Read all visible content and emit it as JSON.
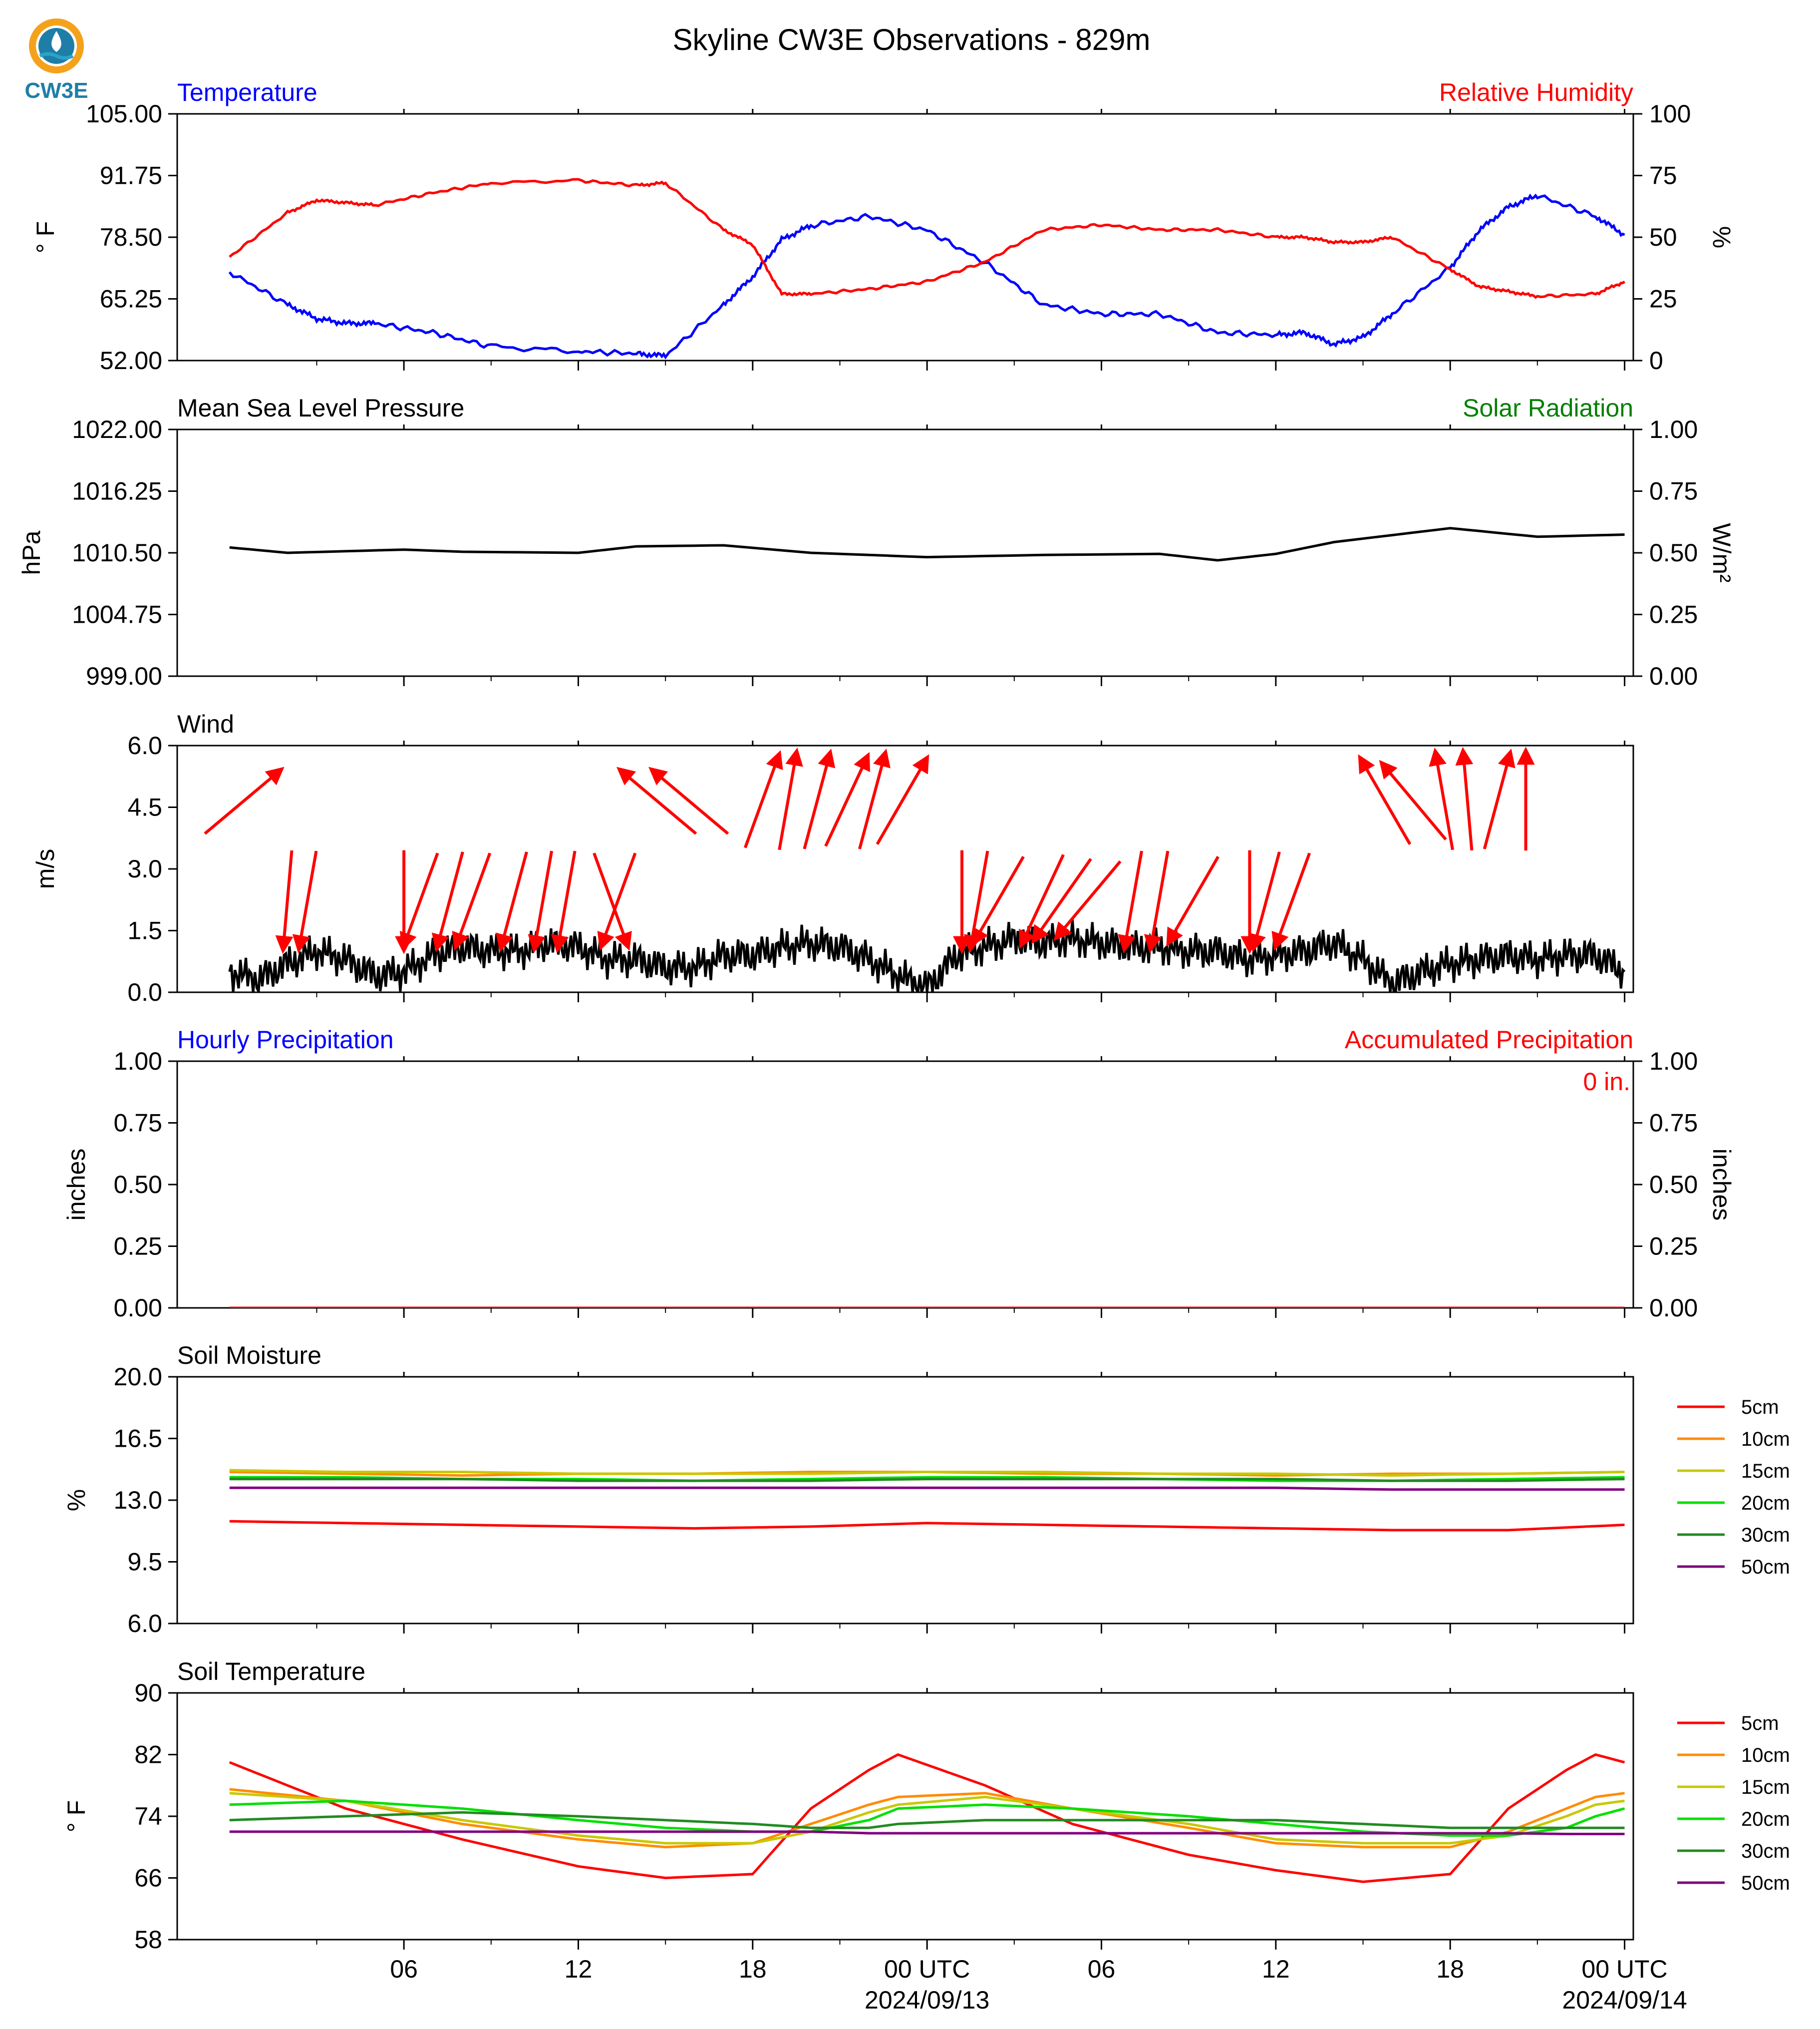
{
  "title": "Skyline CW3E Observations - 829m",
  "logo": {
    "text": "CW3E",
    "colors": {
      "ring": "#f4a21c",
      "drop": "#1f7ea8",
      "wave": "#2aa3c9"
    }
  },
  "x_axis": {
    "ticks": [
      "06",
      "12",
      "18",
      "00 UTC",
      "06",
      "12",
      "18",
      "00 UTC"
    ],
    "dates": [
      "2024/09/13",
      "2024/09/14"
    ]
  },
  "chart_data": [
    {
      "type": "line",
      "title_left": "Temperature",
      "title_left_color": "#0000ff",
      "title_right": "Relative Humidity",
      "title_right_color": "#ff0000",
      "ylabel": "° F",
      "ylabel_right": "%",
      "ylim": [
        52,
        105
      ],
      "yticks": [
        "105.00",
        "91.75",
        "78.50",
        "65.25",
        "52.00"
      ],
      "ylim_right": [
        0,
        100
      ],
      "yticks_right": [
        "100",
        "75",
        "50",
        "25",
        "0"
      ],
      "x_hours": [
        0,
        2,
        3,
        4,
        5,
        7,
        9,
        12,
        14,
        15,
        17,
        18,
        19,
        20,
        22,
        24,
        26,
        28,
        30,
        32,
        34,
        36,
        37,
        38,
        39,
        40,
        42,
        43,
        44,
        45,
        47,
        48
      ],
      "series": [
        {
          "name": "Temperature",
          "color": "#0000ff",
          "axis": "left",
          "values": [
            71,
            64,
            61,
            60,
            60,
            58,
            55,
            54,
            53.5,
            53,
            64,
            70,
            78,
            81,
            83,
            80,
            73,
            64,
            62,
            62,
            58,
            57.5,
            58,
            55.5,
            57,
            62,
            72,
            80,
            85,
            87.5,
            83,
            79
          ]
        },
        {
          "name": "Relative Humidity",
          "color": "#ff0000",
          "axis": "right",
          "values": [
            42,
            60,
            65,
            64,
            63,
            68,
            72,
            73,
            71,
            72,
            53,
            47,
            27,
            27,
            29,
            32,
            40,
            53,
            55,
            53,
            53,
            50,
            50,
            48,
            48,
            50,
            37,
            30,
            28,
            26,
            27,
            32
          ]
        }
      ]
    },
    {
      "type": "line",
      "title_left": "Mean Sea Level Pressure",
      "title_left_color": "#000000",
      "title_right": "Solar Radiation",
      "title_right_color": "#008000",
      "ylabel": "hPa",
      "ylabel_right": "W/m²",
      "ylim": [
        999,
        1022
      ],
      "yticks": [
        "1022.00",
        "1016.25",
        "1010.50",
        "1004.75",
        "999.00"
      ],
      "ylim_right": [
        0,
        1
      ],
      "yticks_right": [
        "1.00",
        "0.75",
        "0.50",
        "0.25",
        "0.00"
      ],
      "x_hours": [
        0,
        2,
        6,
        8,
        12,
        14,
        17,
        20,
        24,
        28,
        32,
        34,
        36,
        38,
        42,
        45,
        48
      ],
      "series": [
        {
          "name": "Pressure",
          "color": "#000000",
          "axis": "left",
          "values": [
            1011.0,
            1010.5,
            1010.8,
            1010.6,
            1010.5,
            1011.1,
            1011.2,
            1010.5,
            1010.1,
            1010.3,
            1010.4,
            1009.8,
            1010.4,
            1011.5,
            1012.8,
            1012.0,
            1012.2
          ]
        }
      ]
    },
    {
      "type": "line",
      "title_left": "Wind",
      "title_left_color": "#000000",
      "ylabel": "m/s",
      "ylim": [
        0,
        6
      ],
      "yticks": [
        "6.0",
        "4.5",
        "3.0",
        "1.5",
        "0.0"
      ],
      "x_hours": [
        0,
        1,
        2,
        3,
        4,
        5,
        6,
        7,
        8,
        9,
        10,
        11,
        12,
        13,
        14,
        15,
        16,
        17,
        18,
        19,
        20,
        21,
        22,
        23,
        24,
        25,
        26,
        27,
        28,
        29,
        30,
        31,
        32,
        33,
        34,
        35,
        36,
        37,
        38,
        39,
        40,
        41,
        42,
        43,
        44,
        45,
        46,
        47,
        48
      ],
      "series": [
        {
          "name": "Wind speed",
          "color": "#000000",
          "axis": "left",
          "values": [
            0.5,
            0.3,
            0.7,
            1.0,
            0.8,
            0.4,
            0.5,
            0.9,
            1.1,
            1.0,
            1.0,
            1.2,
            1.1,
            0.8,
            0.8,
            0.6,
            0.6,
            0.9,
            0.9,
            1.1,
            1.2,
            1.1,
            0.8,
            0.4,
            0.1,
            0.9,
            1.1,
            1.3,
            1.2,
            1.3,
            1.2,
            1.1,
            1.1,
            1.0,
            1.0,
            0.8,
            0.9,
            1.0,
            1.2,
            0.8,
            0.2,
            0.5,
            0.7,
            0.8,
            0.9,
            0.8,
            0.9,
            0.9,
            0.5
          ]
        }
      ],
      "wind_arrows": {
        "color": "#ff0000",
        "items": [
          {
            "hour": 0.4,
            "row": "high",
            "dir": 230
          },
          {
            "hour": 2.0,
            "row": "low",
            "dir": 5
          },
          {
            "hour": 2.7,
            "row": "low",
            "dir": 10
          },
          {
            "hour": 6.0,
            "row": "low",
            "dir": 0
          },
          {
            "hour": 6.6,
            "row": "low",
            "dir": 20
          },
          {
            "hour": 7.6,
            "row": "low",
            "dir": 15
          },
          {
            "hour": 8.4,
            "row": "low",
            "dir": 20
          },
          {
            "hour": 9.8,
            "row": "low",
            "dir": 15
          },
          {
            "hour": 10.8,
            "row": "low",
            "dir": 10
          },
          {
            "hour": 11.6,
            "row": "low",
            "dir": 10
          },
          {
            "hour": 13.1,
            "row": "low",
            "dir": 340
          },
          {
            "hour": 13.4,
            "row": "low",
            "dir": 20
          },
          {
            "hour": 14.8,
            "row": "high",
            "dir": 130
          },
          {
            "hour": 15.9,
            "row": "high",
            "dir": 130
          },
          {
            "hour": 18.3,
            "row": "high",
            "dir": 200
          },
          {
            "hour": 19.2,
            "row": "high",
            "dir": 190
          },
          {
            "hour": 20.2,
            "row": "high",
            "dir": 195
          },
          {
            "hour": 21.2,
            "row": "high",
            "dir": 205
          },
          {
            "hour": 22.1,
            "row": "high",
            "dir": 195
          },
          {
            "hour": 23.1,
            "row": "high",
            "dir": 210
          },
          {
            "hour": 25.2,
            "row": "low",
            "dir": 0
          },
          {
            "hour": 25.8,
            "row": "low",
            "dir": 10
          },
          {
            "hour": 26.5,
            "row": "low",
            "dir": 30
          },
          {
            "hour": 28.0,
            "row": "low",
            "dir": 25
          },
          {
            "hour": 28.7,
            "row": "low",
            "dir": 35
          },
          {
            "hour": 29.6,
            "row": "low",
            "dir": 40
          },
          {
            "hour": 31.1,
            "row": "low",
            "dir": 10
          },
          {
            "hour": 32.0,
            "row": "low",
            "dir": 10
          },
          {
            "hour": 33.2,
            "row": "low",
            "dir": 30
          },
          {
            "hour": 35.1,
            "row": "low",
            "dir": 0
          },
          {
            "hour": 35.7,
            "row": "low",
            "dir": 15
          },
          {
            "hour": 36.6,
            "row": "low",
            "dir": 20
          },
          {
            "hour": 39.8,
            "row": "high",
            "dir": 150
          },
          {
            "hour": 40.8,
            "row": "high",
            "dir": 140
          },
          {
            "hour": 41.8,
            "row": "high",
            "dir": 170
          },
          {
            "hour": 42.6,
            "row": "high",
            "dir": 175
          },
          {
            "hour": 43.6,
            "row": "high",
            "dir": 195
          },
          {
            "hour": 44.6,
            "row": "high",
            "dir": 180
          }
        ]
      }
    },
    {
      "type": "line",
      "title_left": "Hourly Precipitation",
      "title_left_color": "#0000ff",
      "title_right": "Accumulated Precipitation",
      "title_right_color": "#ff0000",
      "ylabel": "inches",
      "ylabel_right": "inches",
      "ylim": [
        0,
        1
      ],
      "yticks": [
        "1.00",
        "0.75",
        "0.50",
        "0.25",
        "0.00"
      ],
      "ylim_right": [
        0,
        1
      ],
      "yticks_right": [
        "1.00",
        "0.75",
        "0.50",
        "0.25",
        "0.00"
      ],
      "annotation": "0 in.",
      "x_hours": [
        0,
        48
      ],
      "series": [
        {
          "name": "Accumulated",
          "color": "#ff0000",
          "axis": "right",
          "values": [
            0,
            0
          ]
        }
      ]
    },
    {
      "type": "line",
      "title_left": "Soil Moisture",
      "title_left_color": "#000000",
      "ylabel": "%",
      "ylim": [
        6,
        20
      ],
      "yticks": [
        "20.0",
        "16.5",
        "13.0",
        "9.5",
        "6.0"
      ],
      "x_hours": [
        0,
        4,
        8,
        12,
        16,
        20,
        24,
        28,
        32,
        36,
        40,
        44,
        48
      ],
      "series": [
        {
          "name": "5cm",
          "color": "#ff0000",
          "values": [
            11.8,
            11.7,
            11.6,
            11.5,
            11.4,
            11.5,
            11.7,
            11.6,
            11.5,
            11.4,
            11.3,
            11.3,
            11.6
          ]
        },
        {
          "name": "10cm",
          "color": "#ff8c00",
          "values": [
            14.6,
            14.5,
            14.4,
            14.5,
            14.5,
            14.6,
            14.6,
            14.5,
            14.5,
            14.4,
            14.5,
            14.5,
            14.6
          ]
        },
        {
          "name": "15cm",
          "color": "#c8c800",
          "values": [
            14.7,
            14.6,
            14.6,
            14.5,
            14.5,
            14.5,
            14.6,
            14.6,
            14.5,
            14.5,
            14.4,
            14.5,
            14.6
          ]
        },
        {
          "name": "20cm",
          "color": "#00e000",
          "values": [
            14.3,
            14.3,
            14.2,
            14.2,
            14.1,
            14.2,
            14.3,
            14.3,
            14.2,
            14.1,
            14.1,
            14.2,
            14.3
          ]
        },
        {
          "name": "30cm",
          "color": "#228b22",
          "values": [
            14.2,
            14.2,
            14.2,
            14.1,
            14.1,
            14.1,
            14.2,
            14.2,
            14.2,
            14.2,
            14.1,
            14.1,
            14.2
          ]
        },
        {
          "name": "50cm",
          "color": "#800080",
          "values": [
            13.7,
            13.7,
            13.7,
            13.7,
            13.7,
            13.7,
            13.7,
            13.7,
            13.7,
            13.7,
            13.6,
            13.6,
            13.6
          ]
        }
      ]
    },
    {
      "type": "line",
      "title_left": "Soil Temperature",
      "title_left_color": "#000000",
      "ylabel": "° F",
      "ylim": [
        58,
        90
      ],
      "yticks": [
        "90",
        "82",
        "74",
        "66",
        "58"
      ],
      "x_hours": [
        0,
        4,
        8,
        12,
        15,
        18,
        20,
        22,
        23,
        26,
        29,
        33,
        36,
        39,
        42,
        44,
        46,
        47,
        48
      ],
      "series": [
        {
          "name": "5cm",
          "color": "#ff0000",
          "values": [
            81,
            75,
            71,
            67.5,
            66,
            66.5,
            75,
            80,
            82,
            78,
            73,
            69,
            67,
            65.5,
            66.5,
            75,
            80,
            82,
            81
          ]
        },
        {
          "name": "10cm",
          "color": "#ff8c00",
          "values": [
            77.5,
            76,
            73,
            71,
            70,
            70.5,
            73,
            75.5,
            76.5,
            77,
            75,
            72.5,
            70.5,
            70,
            70,
            72,
            75,
            76.5,
            77
          ]
        },
        {
          "name": "15cm",
          "color": "#c8c800",
          "values": [
            77,
            76,
            73.5,
            71.5,
            70.5,
            70.5,
            72,
            74.5,
            75.5,
            76.5,
            75,
            73,
            71,
            70.5,
            70.5,
            71.5,
            74,
            75.5,
            76
          ]
        },
        {
          "name": "20cm",
          "color": "#00e000",
          "values": [
            75.5,
            76,
            75,
            73.5,
            72.5,
            72,
            72,
            73.5,
            75,
            75.5,
            75,
            74,
            73,
            72,
            71.5,
            71.5,
            72.5,
            74,
            75
          ]
        },
        {
          "name": "30cm",
          "color": "#228b22",
          "values": [
            73.5,
            74,
            74.5,
            74,
            73.5,
            73,
            72.5,
            72.5,
            73,
            73.5,
            73.5,
            73.5,
            73.5,
            73,
            72.5,
            72.5,
            72.5,
            72.5,
            72.5
          ]
        },
        {
          "name": "50cm",
          "color": "#800080",
          "values": [
            72,
            72,
            72,
            72,
            72,
            72,
            72,
            71.8,
            71.8,
            71.8,
            71.8,
            71.8,
            71.8,
            71.8,
            71.8,
            71.8,
            71.7,
            71.7,
            71.7
          ]
        }
      ]
    }
  ]
}
